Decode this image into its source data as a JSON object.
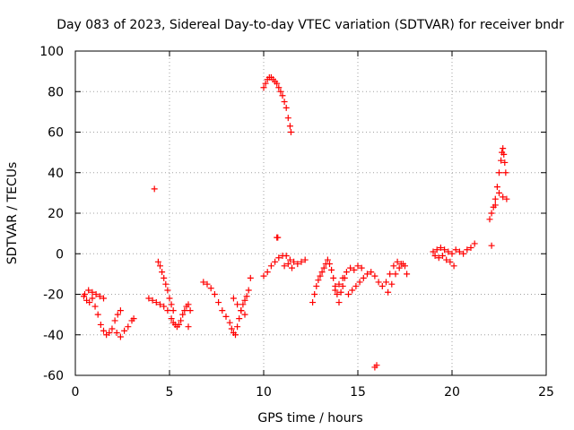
{
  "chart_data": {
    "type": "scatter",
    "title": "Day 083 of 2023, Sidereal Day-to-day VTEC variation (SDTVAR) for receiver bndr",
    "xlabel": "GPS time / hours",
    "ylabel": "SDTVAR / TECUs",
    "xlim": [
      0,
      25
    ],
    "ylim": [
      -60,
      100
    ],
    "xticks": [
      0,
      5,
      10,
      15,
      20,
      25
    ],
    "yticks": [
      -60,
      -40,
      -20,
      0,
      20,
      40,
      60,
      80,
      100
    ],
    "xtick_labels": [
      "0",
      "5",
      "10",
      "15",
      "20",
      "25"
    ],
    "ytick_labels": [
      "-60",
      "-40",
      "-20",
      "0",
      "20",
      "40",
      "60",
      "80",
      "100"
    ],
    "grid": true,
    "marker": "+",
    "color": "#ff0000",
    "series": [
      {
        "name": "SDTVAR",
        "x": [
          0.45,
          0.6,
          0.75,
          0.9,
          1.05,
          1.2,
          1.35,
          1.5,
          1.65,
          1.8,
          1.95,
          2.1,
          2.25,
          2.4,
          0.5,
          0.7,
          0.9,
          1.1,
          1.3,
          1.5,
          2.2,
          2.4,
          2.6,
          2.8,
          3.0,
          3.1,
          4.2,
          4.4,
          4.5,
          4.6,
          4.7,
          4.8,
          4.9,
          5.0,
          5.1,
          5.2,
          5.1,
          5.2,
          5.3,
          5.4,
          5.5,
          5.6,
          5.7,
          5.8,
          5.9,
          6.0,
          6.1,
          6.0,
          3.9,
          4.1,
          4.3,
          4.5,
          4.7,
          4.9,
          6.8,
          7.0,
          7.2,
          7.4,
          7.6,
          7.8,
          8.0,
          8.2,
          8.3,
          8.4,
          8.5,
          8.6,
          8.7,
          8.8,
          8.9,
          9.0,
          9.1,
          9.2,
          9.3,
          8.4,
          8.6,
          8.8,
          9.0,
          10.0,
          10.1,
          10.2,
          10.3,
          10.4,
          10.5,
          10.6,
          10.7,
          10.8,
          10.9,
          11.0,
          11.1,
          11.2,
          11.3,
          11.4,
          11.45,
          10.0,
          10.2,
          10.4,
          10.6,
          10.8,
          11.0,
          11.2,
          11.4,
          11.6,
          11.8,
          12.0,
          12.2,
          10.7,
          10.75,
          11.1,
          11.3,
          11.5,
          12.6,
          12.7,
          12.8,
          12.9,
          13.0,
          13.1,
          13.2,
          13.3,
          13.4,
          13.5,
          13.6,
          13.7,
          13.8,
          13.9,
          14.0,
          14.1,
          14.2,
          14.3,
          13.8,
          14.0,
          14.2,
          14.4,
          14.6,
          14.8,
          15.0,
          15.2,
          14.5,
          14.7,
          14.9,
          15.1,
          15.3,
          15.5,
          15.7,
          15.9,
          16.1,
          16.3,
          16.5,
          16.7,
          16.9,
          17.1,
          17.3,
          17.5,
          16.6,
          16.8,
          17.0,
          17.2,
          17.4,
          17.6,
          15.9,
          16.0,
          19.0,
          19.2,
          19.4,
          19.6,
          19.8,
          20.0,
          20.2,
          20.4,
          20.6,
          20.8,
          21.0,
          21.2,
          19.1,
          19.3,
          19.5,
          19.7,
          19.9,
          20.1,
          22.0,
          22.1,
          22.2,
          22.3,
          22.4,
          22.5,
          22.6,
          22.65,
          22.7,
          22.75,
          22.8,
          22.85,
          22.3,
          22.5,
          22.7,
          22.9,
          22.1
        ],
        "y": [
          -21,
          -23,
          -24,
          -22,
          -26,
          -30,
          -35,
          -38,
          -40,
          -39,
          -37,
          -33,
          -30,
          -28,
          -20,
          -18,
          -19,
          -20,
          -21,
          -22,
          -39,
          -41,
          -38,
          -36,
          -33,
          -32,
          32,
          -4,
          -6,
          -9,
          -12,
          -15,
          -18,
          -22,
          -25,
          -28,
          -32,
          -34,
          -35,
          -36,
          -35,
          -33,
          -30,
          -28,
          -26,
          -25,
          -28,
          -36,
          -22,
          -23,
          -24,
          -25,
          -26,
          -28,
          -14,
          -15,
          -17,
          -20,
          -24,
          -28,
          -31,
          -34,
          -37,
          -39,
          -40,
          -36,
          -32,
          -28,
          -25,
          -23,
          -21,
          -18,
          -12,
          -22,
          -25,
          -28,
          -30,
          82,
          84,
          86,
          87,
          87,
          86,
          85,
          84,
          82,
          80,
          78,
          75,
          72,
          67,
          63,
          60,
          -11,
          -9,
          -6,
          -4,
          -2,
          -1,
          -1,
          -3,
          -4,
          -5,
          -4,
          -3,
          8,
          8,
          -6,
          -5,
          -7,
          -24,
          -20,
          -16,
          -13,
          -11,
          -9,
          -7,
          -5,
          -3,
          -5,
          -8,
          -12,
          -16,
          -20,
          -24,
          -19,
          -16,
          -12,
          -18,
          -15,
          -12,
          -9,
          -7,
          -8,
          -6,
          -7,
          -20,
          -18,
          -16,
          -14,
          -12,
          -10,
          -9,
          -11,
          -14,
          -16,
          -14,
          -10,
          -6,
          -4,
          -5,
          -6,
          -19,
          -15,
          -10,
          -7,
          -5,
          -10,
          -56,
          -55,
          1,
          2,
          3,
          2,
          1,
          0,
          2,
          1,
          0,
          2,
          3,
          5,
          -1,
          -2,
          -1,
          -3,
          -4,
          -6,
          17,
          20,
          23,
          27,
          33,
          40,
          46,
          50,
          52,
          49,
          45,
          40,
          24,
          30,
          28,
          27,
          4
        ]
      }
    ]
  }
}
